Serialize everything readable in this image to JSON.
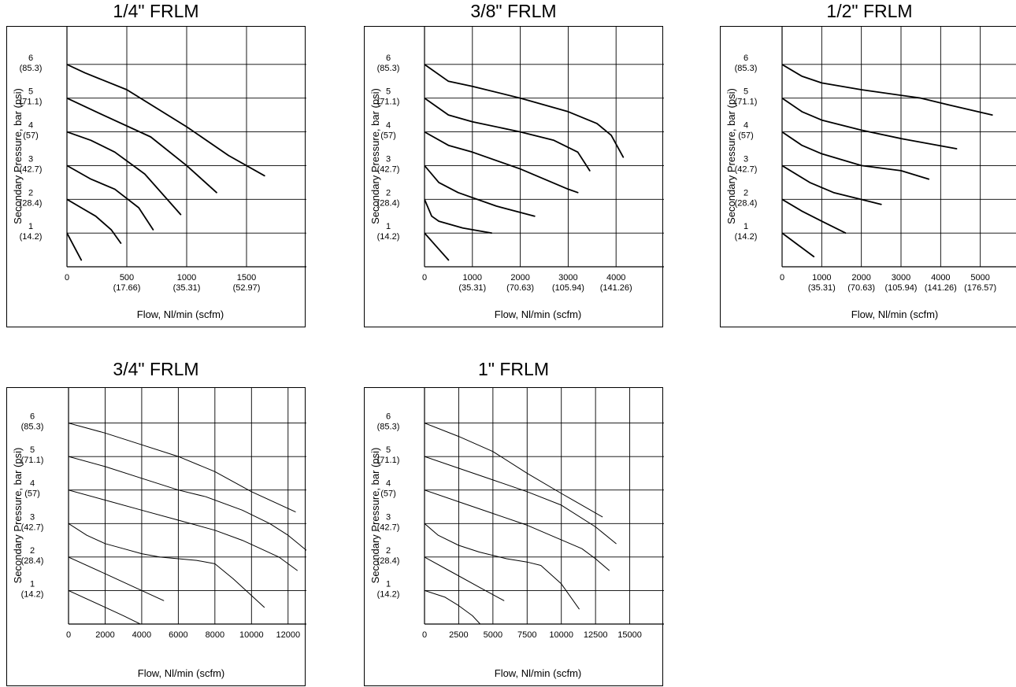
{
  "chart_data": [
    {
      "type": "line",
      "title": "1/4\" FRLM",
      "xlabel": "Flow, Nl/min (scfm)",
      "ylabel": "Secondary Pressure, bar (psi)",
      "xlim": [
        0,
        2000
      ],
      "ylim": [
        0,
        7
      ],
      "x_ticks": [
        {
          "value": 0,
          "label": "0",
          "sub": ""
        },
        {
          "value": 500,
          "label": "500",
          "sub": "(17.66)"
        },
        {
          "value": 1000,
          "label": "1000",
          "sub": "(35.31)"
        },
        {
          "value": 1500,
          "label": "1500",
          "sub": "(52.97)"
        }
      ],
      "x_grid": [
        500,
        1000,
        1500
      ],
      "y_ticks": [
        {
          "value": 1,
          "label": "1",
          "sub": "(14.2)"
        },
        {
          "value": 2,
          "label": "2",
          "sub": "(28.4)"
        },
        {
          "value": 3,
          "label": "3",
          "sub": "(42.7)"
        },
        {
          "value": 4,
          "label": "4",
          "sub": "(57)"
        },
        {
          "value": 5,
          "label": "5",
          "sub": "(71.1)"
        },
        {
          "value": 6,
          "label": "6",
          "sub": "(85.3)"
        }
      ],
      "grid": true,
      "series": [
        {
          "x": [
            0,
            60,
            120
          ],
          "y": [
            1.0,
            0.6,
            0.2
          ]
        },
        {
          "x": [
            0,
            120,
            240,
            370,
            450
          ],
          "y": [
            2.0,
            1.75,
            1.5,
            1.1,
            0.7
          ]
        },
        {
          "x": [
            0,
            200,
            400,
            600,
            720
          ],
          "y": [
            3.0,
            2.6,
            2.3,
            1.75,
            1.1
          ]
        },
        {
          "x": [
            0,
            200,
            400,
            650,
            950
          ],
          "y": [
            4.0,
            3.75,
            3.4,
            2.75,
            1.55
          ]
        },
        {
          "x": [
            0,
            300,
            700,
            1000,
            1250
          ],
          "y": [
            5.0,
            4.5,
            3.85,
            3.0,
            2.2
          ]
        },
        {
          "x": [
            0,
            150,
            500,
            1000,
            1350,
            1650
          ],
          "y": [
            6.0,
            5.75,
            5.25,
            4.15,
            3.3,
            2.7
          ]
        }
      ]
    },
    {
      "type": "line",
      "title": "3/8\" FRLM",
      "xlabel": "Flow, Nl/min (scfm)",
      "ylabel": "Secondary Pressure, bar (psi)",
      "xlim": [
        0,
        5000
      ],
      "ylim": [
        0,
        7
      ],
      "x_ticks": [
        {
          "value": 0,
          "label": "0",
          "sub": ""
        },
        {
          "value": 1000,
          "label": "1000",
          "sub": "(35.31)"
        },
        {
          "value": 2000,
          "label": "2000",
          "sub": "(70.63)"
        },
        {
          "value": 3000,
          "label": "3000",
          "sub": "(105.94)"
        },
        {
          "value": 4000,
          "label": "4000",
          "sub": "(141.26)"
        }
      ],
      "x_grid": [
        1000,
        2000,
        3000,
        4000
      ],
      "y_ticks": [
        {
          "value": 1,
          "label": "1",
          "sub": "(14.2)"
        },
        {
          "value": 2,
          "label": "2",
          "sub": "(28.4)"
        },
        {
          "value": 3,
          "label": "3",
          "sub": "(42.7)"
        },
        {
          "value": 4,
          "label": "4",
          "sub": "(57)"
        },
        {
          "value": 5,
          "label": "5",
          "sub": "(71.1)"
        },
        {
          "value": 6,
          "label": "6",
          "sub": "(85.3)"
        }
      ],
      "grid": true,
      "series": [
        {
          "x": [
            0,
            250,
            500
          ],
          "y": [
            1.0,
            0.6,
            0.2
          ]
        },
        {
          "x": [
            0,
            150,
            300,
            800,
            1400
          ],
          "y": [
            2.0,
            1.5,
            1.35,
            1.15,
            1.0
          ]
        },
        {
          "x": [
            0,
            300,
            700,
            1500,
            2300
          ],
          "y": [
            3.0,
            2.5,
            2.2,
            1.8,
            1.5
          ]
        },
        {
          "x": [
            0,
            500,
            1000,
            2000,
            3000,
            3200
          ],
          "y": [
            4.0,
            3.6,
            3.4,
            2.9,
            2.3,
            2.2
          ]
        },
        {
          "x": [
            0,
            500,
            1000,
            2000,
            2700,
            3200,
            3450
          ],
          "y": [
            5.0,
            4.5,
            4.3,
            4.0,
            3.75,
            3.4,
            2.85
          ]
        },
        {
          "x": [
            0,
            500,
            1000,
            2000,
            3000,
            3600,
            3900,
            4150
          ],
          "y": [
            6.0,
            5.5,
            5.35,
            5.0,
            4.6,
            4.25,
            3.9,
            3.25
          ]
        }
      ]
    },
    {
      "type": "line",
      "title": "1/2\" FRLM",
      "xlabel": "Flow, Nl/min (scfm)",
      "ylabel": "Secondary Pressure, bar (psi)",
      "xlim": [
        0,
        6000
      ],
      "ylim": [
        0,
        7
      ],
      "x_ticks": [
        {
          "value": 0,
          "label": "0",
          "sub": ""
        },
        {
          "value": 1000,
          "label": "1000",
          "sub": "(35.31)"
        },
        {
          "value": 2000,
          "label": "2000",
          "sub": "(70.63)"
        },
        {
          "value": 3000,
          "label": "3000",
          "sub": "(105.94)"
        },
        {
          "value": 4000,
          "label": "4000",
          "sub": "(141.26)"
        },
        {
          "value": 5000,
          "label": "5000",
          "sub": "(176.57)"
        }
      ],
      "x_grid": [
        1000,
        2000,
        3000,
        4000,
        5000
      ],
      "y_ticks": [
        {
          "value": 1,
          "label": "1",
          "sub": "(14.2)"
        },
        {
          "value": 2,
          "label": "2",
          "sub": "(28.4)"
        },
        {
          "value": 3,
          "label": "3",
          "sub": "(42.7)"
        },
        {
          "value": 4,
          "label": "4",
          "sub": "(57)"
        },
        {
          "value": 5,
          "label": "5",
          "sub": "(71.1)"
        },
        {
          "value": 6,
          "label": "6",
          "sub": "(85.3)"
        }
      ],
      "grid": true,
      "series": [
        {
          "x": [
            0,
            400,
            800
          ],
          "y": [
            1.0,
            0.65,
            0.3
          ]
        },
        {
          "x": [
            0,
            500,
            1000,
            1600
          ],
          "y": [
            2.0,
            1.65,
            1.35,
            1.0
          ]
        },
        {
          "x": [
            0,
            700,
            1300,
            2500
          ],
          "y": [
            3.0,
            2.5,
            2.2,
            1.85
          ]
        },
        {
          "x": [
            0,
            500,
            1000,
            2000,
            3000,
            3700
          ],
          "y": [
            4.0,
            3.6,
            3.35,
            3.0,
            2.85,
            2.6
          ]
        },
        {
          "x": [
            0,
            500,
            1000,
            2000,
            3000,
            4400
          ],
          "y": [
            5.0,
            4.6,
            4.35,
            4.05,
            3.8,
            3.5
          ]
        },
        {
          "x": [
            0,
            500,
            1000,
            2000,
            3500,
            4200,
            5300
          ],
          "y": [
            6.0,
            5.65,
            5.45,
            5.25,
            5.0,
            4.8,
            4.5
          ]
        }
      ]
    },
    {
      "type": "line",
      "title": "3/4\" FRLM",
      "xlabel": "Flow, Nl/min (scfm)",
      "ylabel": "Secondary Pressure, bar (psi)",
      "xlim": [
        0,
        13000
      ],
      "ylim": [
        0,
        7
      ],
      "x_ticks": [
        {
          "value": 0,
          "label": "0",
          "sub": ""
        },
        {
          "value": 2000,
          "label": "2000",
          "sub": ""
        },
        {
          "value": 4000,
          "label": "4000",
          "sub": ""
        },
        {
          "value": 6000,
          "label": "6000",
          "sub": ""
        },
        {
          "value": 8000,
          "label": "8000",
          "sub": ""
        },
        {
          "value": 10000,
          "label": "10000",
          "sub": ""
        },
        {
          "value": 12000,
          "label": "12000",
          "sub": ""
        }
      ],
      "x_grid": [
        2000,
        4000,
        6000,
        8000,
        10000,
        12000
      ],
      "y_ticks": [
        {
          "value": 1,
          "label": "1",
          "sub": "(14.2)"
        },
        {
          "value": 2,
          "label": "2",
          "sub": "(28.4)"
        },
        {
          "value": 3,
          "label": "3",
          "sub": "(42.7)"
        },
        {
          "value": 4,
          "label": "4",
          "sub": "(57)"
        },
        {
          "value": 5,
          "label": "5",
          "sub": "(71.1)"
        },
        {
          "value": 6,
          "label": "6",
          "sub": "(85.3)"
        }
      ],
      "grid": true,
      "series": [
        {
          "x": [
            0,
            1800,
            3000,
            4300
          ],
          "y": [
            1.0,
            0.55,
            0.25,
            -0.1
          ]
        },
        {
          "x": [
            0,
            2000,
            4000,
            5200
          ],
          "y": [
            2.0,
            1.5,
            1.0,
            0.7
          ]
        },
        {
          "x": [
            0,
            1000,
            2000,
            3000,
            4000,
            5000,
            6000,
            7000,
            8000,
            9000,
            10000,
            10700
          ],
          "y": [
            3.0,
            2.65,
            2.4,
            2.25,
            2.1,
            2.0,
            1.95,
            1.9,
            1.8,
            1.35,
            0.85,
            0.5
          ]
        },
        {
          "x": [
            0,
            2000,
            4000,
            6000,
            8000,
            9500,
            10500,
            11500,
            12500
          ],
          "y": [
            4.0,
            3.7,
            3.4,
            3.1,
            2.8,
            2.5,
            2.25,
            2.0,
            1.6
          ]
        },
        {
          "x": [
            0,
            2000,
            4000,
            6000,
            7500,
            9500,
            11000,
            12000,
            13000
          ],
          "y": [
            5.0,
            4.7,
            4.35,
            4.0,
            3.8,
            3.4,
            3.0,
            2.65,
            2.2
          ]
        },
        {
          "x": [
            0,
            2000,
            4000,
            6000,
            8000,
            10000,
            12400
          ],
          "y": [
            6.0,
            5.7,
            5.35,
            5.0,
            4.55,
            3.95,
            3.35
          ]
        }
      ]
    },
    {
      "type": "line",
      "title": "1\" FRLM",
      "xlabel": "Flow, Nl/min (scfm)",
      "ylabel": "Secondary Pressure, bar (psi)",
      "xlim": [
        0,
        17500
      ],
      "ylim": [
        0,
        7
      ],
      "x_ticks": [
        {
          "value": 0,
          "label": "0",
          "sub": ""
        },
        {
          "value": 2500,
          "label": "2500",
          "sub": ""
        },
        {
          "value": 5000,
          "label": "5000",
          "sub": ""
        },
        {
          "value": 7500,
          "label": "7500",
          "sub": ""
        },
        {
          "value": 10000,
          "label": "10000",
          "sub": ""
        },
        {
          "value": 12500,
          "label": "12500",
          "sub": ""
        },
        {
          "value": 15000,
          "label": "15000",
          "sub": ""
        }
      ],
      "x_grid": [
        2500,
        5000,
        7500,
        10000,
        12500,
        15000
      ],
      "y_ticks": [
        {
          "value": 1,
          "label": "1",
          "sub": "(14.2)"
        },
        {
          "value": 2,
          "label": "2",
          "sub": "(28.4)"
        },
        {
          "value": 3,
          "label": "3",
          "sub": "(42.7)"
        },
        {
          "value": 4,
          "label": "4",
          "sub": "(57)"
        },
        {
          "value": 5,
          "label": "5",
          "sub": "(71.1)"
        },
        {
          "value": 6,
          "label": "6",
          "sub": "(85.3)"
        }
      ],
      "grid": true,
      "series": [
        {
          "x": [
            0,
            1500,
            2500,
            3500,
            4300
          ],
          "y": [
            1.0,
            0.8,
            0.55,
            0.25,
            -0.1
          ]
        },
        {
          "x": [
            0,
            2000,
            4000,
            5800
          ],
          "y": [
            2.0,
            1.55,
            1.1,
            0.7
          ]
        },
        {
          "x": [
            0,
            1000,
            2500,
            4000,
            6000,
            7500,
            8500,
            10000,
            11300
          ],
          "y": [
            3.0,
            2.65,
            2.35,
            2.15,
            1.95,
            1.85,
            1.75,
            1.2,
            0.45
          ]
        },
        {
          "x": [
            0,
            2500,
            5000,
            7500,
            9500,
            11500,
            12500,
            13500
          ],
          "y": [
            4.0,
            3.65,
            3.3,
            2.95,
            2.6,
            2.25,
            1.95,
            1.6
          ]
        },
        {
          "x": [
            0,
            2500,
            5000,
            7500,
            10000,
            12500,
            14000
          ],
          "y": [
            5.0,
            4.65,
            4.3,
            3.95,
            3.55,
            2.9,
            2.4
          ]
        },
        {
          "x": [
            0,
            2500,
            5000,
            7500,
            10000,
            13000
          ],
          "y": [
            6.0,
            5.6,
            5.15,
            4.5,
            3.9,
            3.2
          ]
        }
      ]
    }
  ]
}
